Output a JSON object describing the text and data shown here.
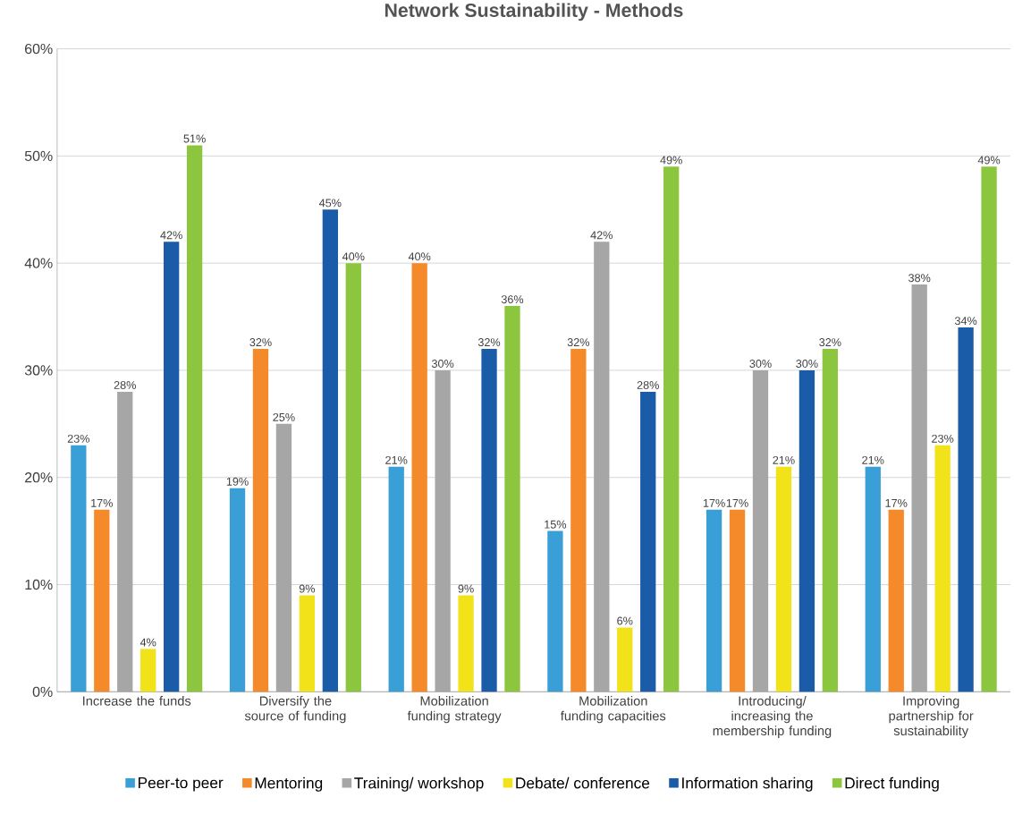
{
  "chart_data": {
    "type": "bar",
    "title": "Network Sustainability - Methods",
    "categories": [
      "Increase the funds",
      "Diversify the source of funding",
      "Mobilization funding strategy",
      "Mobilization funding capacities",
      "Introducing/ increasing the membership funding",
      "Improving partnership for sustainability"
    ],
    "series": [
      {
        "name": "Peer-to peer",
        "color": "#3a9fd6",
        "values": [
          23,
          19,
          21,
          15,
          17,
          21
        ],
        "value_labels": [
          "23%",
          "19%",
          "21%",
          "15%",
          "17%",
          "21%"
        ]
      },
      {
        "name": "Mentoring",
        "color": "#f58a2a",
        "values": [
          17,
          32,
          40,
          32,
          17,
          17
        ],
        "value_labels": [
          "17%",
          "32%",
          "40%",
          "32%",
          "17%",
          "17%"
        ]
      },
      {
        "name": "Training/ workshop",
        "color": "#a6a6a6",
        "values": [
          28,
          25,
          30,
          42,
          30,
          38
        ],
        "value_labels": [
          "28%",
          "25%",
          "30%",
          "42%",
          "30%",
          "38%"
        ]
      },
      {
        "name": "Debate/ conference",
        "color": "#f2e21a",
        "values": [
          4,
          9,
          9,
          6,
          21,
          23
        ],
        "value_labels": [
          "4%",
          "9%",
          "9%",
          "6%",
          "21%",
          "23%"
        ]
      },
      {
        "name": "Information sharing",
        "color": "#1a5ca8",
        "values": [
          42,
          45,
          32,
          28,
          30,
          34
        ],
        "value_labels": [
          "42%",
          "45%",
          "32%",
          "28%",
          "30%",
          "34%"
        ]
      },
      {
        "name": "Direct funding",
        "color": "#8cc63f",
        "values": [
          51,
          40,
          36,
          49,
          32,
          49
        ],
        "value_labels": [
          "51%",
          "40%",
          "36%",
          "49%",
          "32%",
          "49%"
        ]
      }
    ],
    "ylim": [
      0,
      60
    ],
    "yticks": [
      {
        "value": 0,
        "label": "0%"
      },
      {
        "value": 10,
        "label": "10%"
      },
      {
        "value": 20,
        "label": "20%"
      },
      {
        "value": 30,
        "label": "30%"
      },
      {
        "value": 40,
        "label": "40%"
      },
      {
        "value": 50,
        "label": "50%"
      },
      {
        "value": 60,
        "label": "60%"
      }
    ],
    "grid": true,
    "legend": "bottom"
  }
}
